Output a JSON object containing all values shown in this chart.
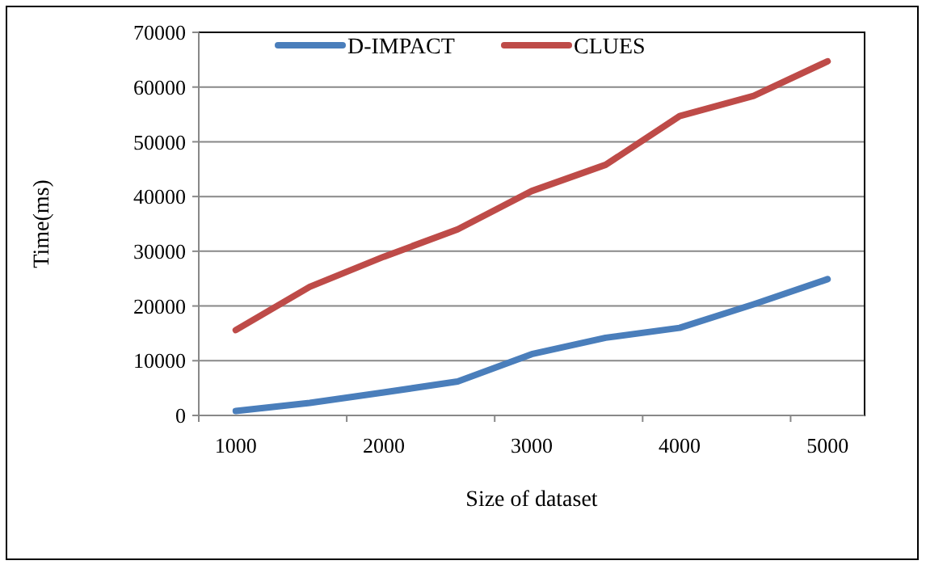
{
  "chart_data": {
    "type": "line",
    "xlabel": "Size of dataset",
    "ylabel": "Time(ms)",
    "categories": [
      "1000",
      null,
      "2000",
      null,
      "3000",
      null,
      "4000",
      null,
      "5000"
    ],
    "series": [
      {
        "name": "D-IMPACT",
        "color": "#4a7ebb",
        "values": [
          800,
          2300,
          4200,
          6200,
          11200,
          14200,
          16000,
          20300,
          24900
        ]
      },
      {
        "name": "CLUES",
        "color": "#be4b48",
        "values": [
          15600,
          23500,
          29000,
          34000,
          41000,
          45800,
          54700,
          58400,
          64700
        ]
      }
    ],
    "ylim": [
      0,
      70000
    ],
    "yticks": [
      0,
      10000,
      20000,
      30000,
      40000,
      50000,
      60000,
      70000
    ],
    "grid": "y",
    "legend": "top",
    "marker": "none",
    "line_style": "solid"
  }
}
